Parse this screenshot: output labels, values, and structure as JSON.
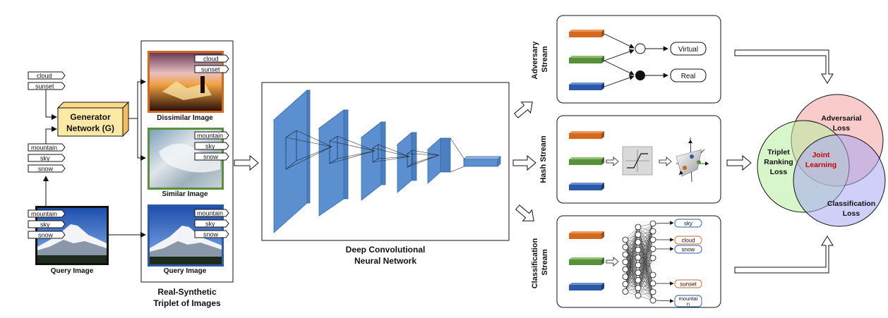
{
  "generator": {
    "title_line1": "Generator",
    "title_line2": "Network (G)"
  },
  "input_tags": {
    "negative": [
      "cloud",
      "sunset"
    ],
    "positive": [
      "mountain",
      "sky",
      "snow"
    ],
    "query": [
      "mountain",
      "sky",
      "snow"
    ]
  },
  "query_image_label": "Query Image",
  "triplet": {
    "dissimilar_tags": [
      "cloud",
      "sunset"
    ],
    "dissimilar_label": "Dissimilar Image",
    "similar_tags": [
      "mountain",
      "sky",
      "snow"
    ],
    "similar_label": "Similar Image",
    "query_tags": [
      "mountain",
      "sky",
      "snow"
    ],
    "query_label": "Query Image",
    "caption_line1": "Real-Synthetic",
    "caption_line2": "Triplet of Images"
  },
  "cnn": {
    "caption_line1": "Deep Convolutional",
    "caption_line2": "Neural Network"
  },
  "adversary_stream": {
    "label_line1": "Adversary",
    "label_line2": "Stream",
    "outputs": [
      "Virtual",
      "Real"
    ]
  },
  "hash_stream": {
    "label": "Hash Stream"
  },
  "classification_stream": {
    "label_line1": "Classification",
    "label_line2": "Stream",
    "outputs": [
      "sky",
      "cloud",
      "snow",
      "sunset",
      "mountai",
      "n"
    ],
    "dots": "⋮"
  },
  "venn": {
    "adversarial_line1": "Adversarial",
    "adversarial_line2": "Loss",
    "triplet_line1": "Triplet",
    "triplet_line2": "Ranking",
    "triplet_line3": "Loss",
    "classification_line1": "Classification",
    "classification_line2": "Loss",
    "joint_line1": "Joint",
    "joint_line2": "Learning"
  },
  "colors": {
    "generator_fill": "#fde9a6",
    "cnn_blue": "#5b8fd0",
    "orange_bar": "#d2691e",
    "green_bar": "#5a8f3c",
    "blue_bar": "#2d5aa8",
    "venn_red": "#f4a0a0",
    "venn_green": "#b6f0a0",
    "venn_blue": "#a8a8f4",
    "joint_text": "#cc0000"
  },
  "icons": [
    "arrow-right-icon",
    "tag-icon",
    "sigmoid-icon",
    "hash-space-icon"
  ]
}
